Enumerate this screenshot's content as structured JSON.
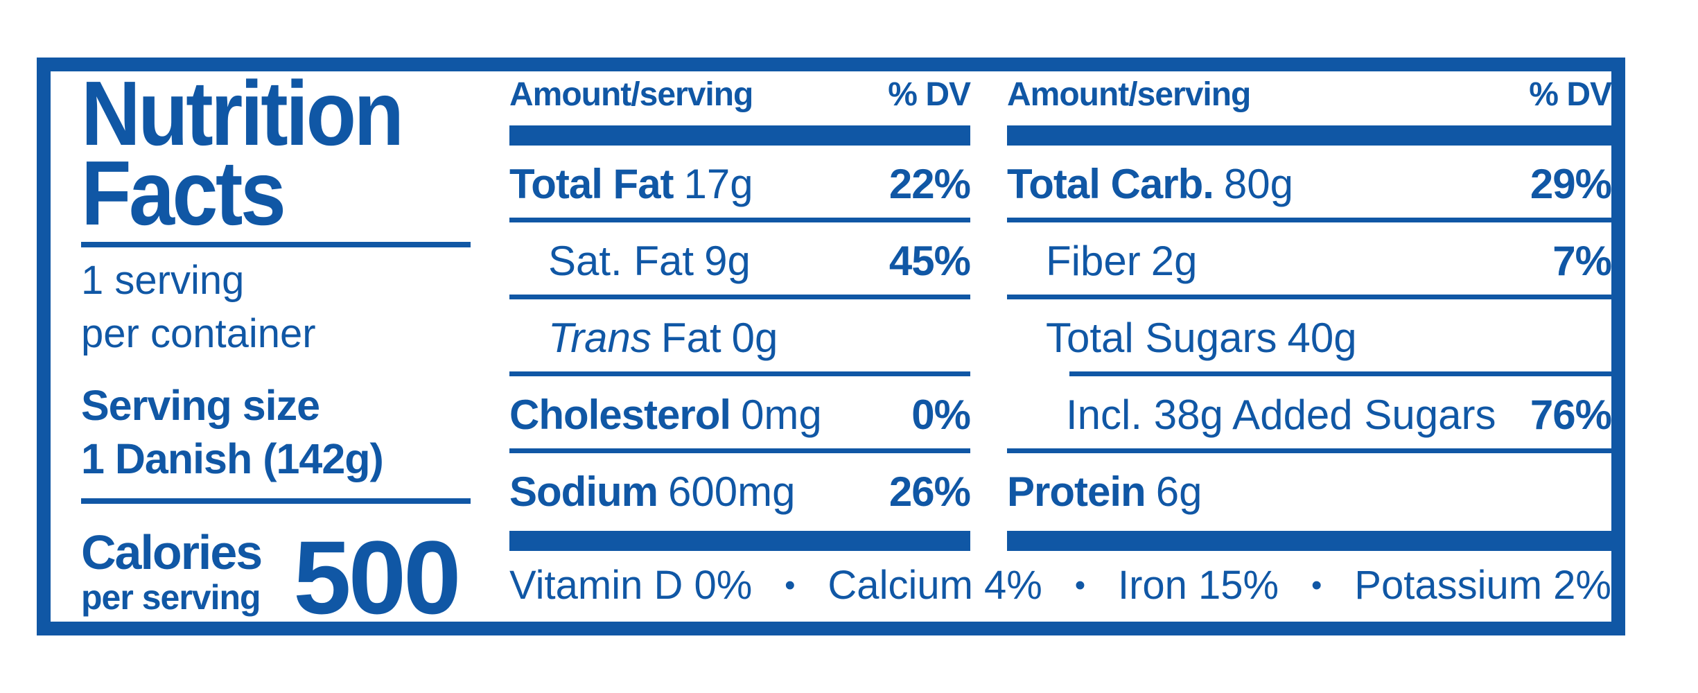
{
  "page": {
    "accent": "#1057A5",
    "background": "#ffffff"
  },
  "label": {
    "title_line1": "Nutrition",
    "title_line2": "Facts",
    "servings_line1": "1 serving",
    "servings_line2": "per container",
    "serving_size_label": "Serving size",
    "serving_size_value": "1 Danish (142g)",
    "calories_label": "Calories",
    "calories_sublabel": "per serving",
    "calories_value": "500"
  },
  "mid_column": {
    "header_amount": "Amount/serving",
    "header_dv": "% DV",
    "rows": [
      {
        "name": "Total Fat",
        "amount": "17g",
        "dv": "22%"
      },
      {
        "name": "Sat. Fat",
        "amount": "9g",
        "dv": "45%"
      },
      {
        "prefix": "Trans",
        "name": "Fat",
        "amount": "0g",
        "dv": ""
      },
      {
        "name": "Cholesterol",
        "amount": "0mg",
        "dv": "0%"
      },
      {
        "name": "Sodium",
        "amount": "600mg",
        "dv": "26%"
      }
    ]
  },
  "right_column": {
    "header_amount": "Amount/serving",
    "header_dv": "% DV",
    "rows": [
      {
        "name": "Total Carb.",
        "amount": "80g",
        "dv": "29%"
      },
      {
        "name": "Fiber",
        "amount": "2g",
        "dv": "7%"
      },
      {
        "name": "Total Sugars",
        "amount": "40g",
        "dv": ""
      },
      {
        "name": "Incl. 38g Added Sugars",
        "amount": "",
        "dv": "76%"
      },
      {
        "name": "Protein",
        "amount": "6g",
        "dv": ""
      }
    ]
  },
  "footer": {
    "bullet": "•",
    "items": [
      "Vitamin D 0%",
      "Calcium 4%",
      "Iron 15%",
      "Potassium 2%"
    ]
  }
}
